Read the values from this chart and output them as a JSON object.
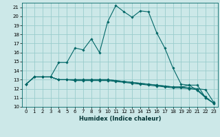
{
  "xlabel": "Humidex (Indice chaleur)",
  "background_color": "#cce8e8",
  "grid_color": "#99cccc",
  "line_color": "#006666",
  "xlim": [
    -0.5,
    23.5
  ],
  "ylim": [
    10,
    21.5
  ],
  "xticks": [
    0,
    1,
    2,
    3,
    4,
    5,
    6,
    7,
    8,
    9,
    10,
    11,
    12,
    13,
    14,
    15,
    16,
    17,
    18,
    19,
    20,
    21,
    22,
    23
  ],
  "yticks": [
    10,
    11,
    12,
    13,
    14,
    15,
    16,
    17,
    18,
    19,
    20,
    21
  ],
  "curves": [
    {
      "x": [
        0,
        1,
        2,
        3,
        4,
        5,
        6,
        7,
        8,
        9,
        10,
        11,
        12,
        13,
        14,
        15,
        16,
        17,
        18,
        19,
        20,
        21,
        22,
        23
      ],
      "y": [
        12.5,
        13.3,
        13.3,
        13.3,
        13.0,
        13.0,
        12.9,
        12.9,
        12.9,
        12.9,
        12.9,
        12.8,
        12.7,
        12.6,
        12.5,
        12.4,
        12.3,
        12.2,
        12.1,
        12.1,
        12.0,
        11.9,
        11.1,
        10.4
      ]
    },
    {
      "x": [
        0,
        1,
        2,
        3,
        4,
        5,
        6,
        7,
        8,
        9,
        10,
        11,
        12,
        13,
        14,
        15,
        16,
        17,
        18,
        19,
        20,
        21,
        22,
        23
      ],
      "y": [
        12.5,
        13.3,
        13.3,
        13.3,
        14.9,
        14.9,
        16.5,
        16.3,
        17.5,
        16.0,
        19.4,
        21.2,
        20.5,
        19.9,
        20.6,
        20.5,
        18.2,
        16.5,
        14.3,
        12.5,
        12.4,
        11.8,
        11.0,
        10.4
      ]
    },
    {
      "x": [
        0,
        1,
        2,
        3,
        4,
        5,
        6,
        7,
        8,
        9,
        10,
        11,
        12,
        13,
        14,
        15,
        16,
        17,
        18,
        19,
        20,
        21,
        22,
        23
      ],
      "y": [
        12.5,
        13.3,
        13.3,
        13.3,
        13.0,
        13.0,
        13.0,
        13.0,
        13.0,
        13.0,
        13.0,
        12.9,
        12.8,
        12.7,
        12.6,
        12.5,
        12.4,
        12.3,
        12.2,
        12.2,
        12.4,
        12.4,
        11.0,
        10.4
      ]
    },
    {
      "x": [
        0,
        1,
        2,
        3,
        4,
        5,
        6,
        7,
        8,
        9,
        10,
        11,
        12,
        13,
        14,
        15,
        16,
        17,
        18,
        19,
        20,
        21,
        22,
        23
      ],
      "y": [
        12.5,
        13.3,
        13.3,
        13.3,
        13.0,
        13.0,
        13.0,
        13.0,
        13.0,
        13.0,
        13.0,
        12.9,
        12.8,
        12.7,
        12.6,
        12.5,
        12.4,
        12.3,
        12.2,
        12.2,
        12.1,
        12.0,
        11.9,
        10.5
      ]
    }
  ],
  "xlabel_fontsize": 6,
  "tick_fontsize": 5,
  "linewidth": 0.8,
  "markersize": 1.8
}
